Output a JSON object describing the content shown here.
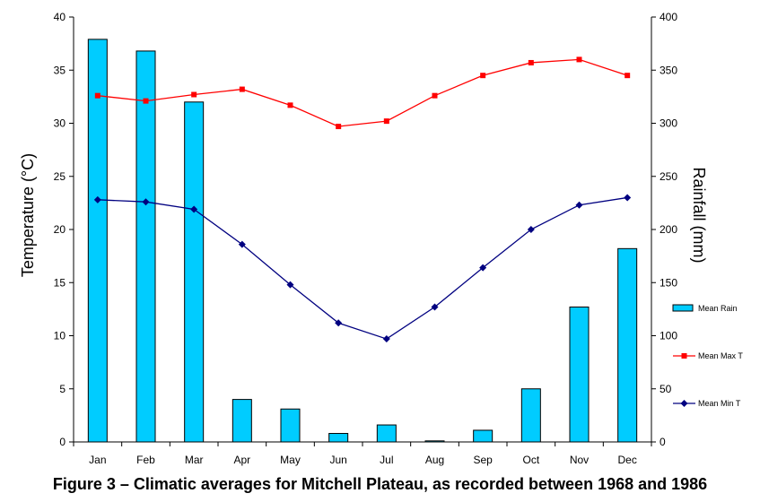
{
  "caption": "Figure 3 – Climatic averages for Mitchell Plateau, as recorded between 1968 and 1986",
  "chart_data": {
    "type": "bar",
    "categories": [
      "Jan",
      "Feb",
      "Mar",
      "Apr",
      "May",
      "Jun",
      "Jul",
      "Aug",
      "Sep",
      "Oct",
      "Nov",
      "Dec"
    ],
    "y_left": {
      "label": "Temperature (°C)",
      "range": [
        0,
        40
      ],
      "ticks": [
        0,
        5,
        10,
        15,
        20,
        25,
        30,
        35,
        40
      ]
    },
    "y_right": {
      "label": "Rainfall (mm)",
      "range": [
        0,
        400
      ],
      "ticks": [
        0,
        50,
        100,
        150,
        200,
        250,
        300,
        350,
        400
      ]
    },
    "series": [
      {
        "name": "Mean Rain",
        "type": "bar",
        "axis": "right",
        "color": "#00ccff",
        "values": [
          379,
          368,
          320,
          40,
          31,
          8,
          16,
          1,
          11,
          50,
          127,
          182
        ]
      },
      {
        "name": "Mean Max T",
        "type": "line",
        "axis": "left",
        "color": "#ff0000",
        "marker": "square",
        "values": [
          32.6,
          32.1,
          32.7,
          33.2,
          31.7,
          29.7,
          30.2,
          32.6,
          34.5,
          35.7,
          36.0,
          34.5
        ]
      },
      {
        "name": "Mean Min T",
        "type": "line",
        "axis": "left",
        "color": "#000080",
        "marker": "diamond",
        "values": [
          22.8,
          22.6,
          21.9,
          18.6,
          14.8,
          11.2,
          9.7,
          12.7,
          16.4,
          20.0,
          22.3,
          23.0
        ]
      }
    ],
    "grid": false,
    "legend_position": "right"
  }
}
